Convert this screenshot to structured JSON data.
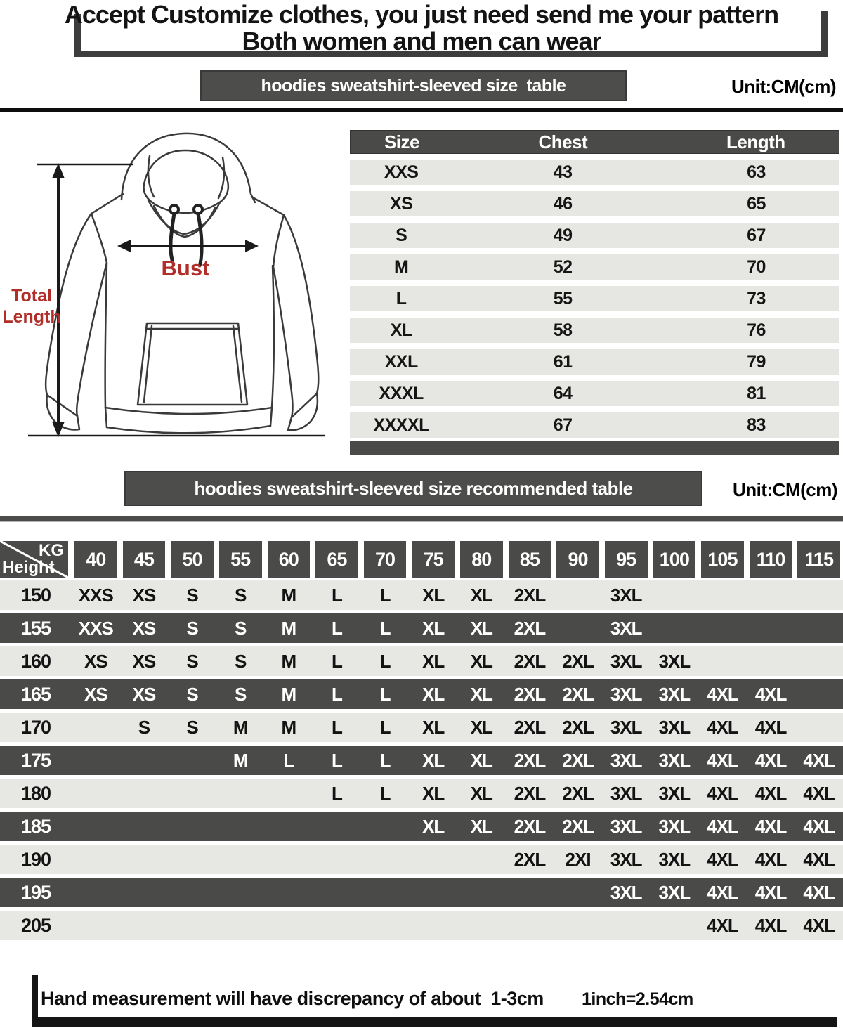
{
  "header": {
    "line1": "Accept Customize clothes, you just need send me your pattern",
    "line2": "Both women and men can wear"
  },
  "banners": {
    "size_table": {
      "label": "hoodies sweatshirt-sleeved size  table",
      "unit": "Unit:CM(cm)"
    },
    "recommended": {
      "label": "hoodies sweatshirt-sleeved size recommended table",
      "unit": "Unit:CM(cm)"
    }
  },
  "diagram": {
    "bust": "Bust",
    "total_line1": "Total",
    "total_line2": "Length"
  },
  "size_table": {
    "columns": [
      "Size",
      "Chest",
      "Length"
    ],
    "rows": [
      {
        "size": "XXS",
        "chest": "43",
        "length": "63"
      },
      {
        "size": "XS",
        "chest": "46",
        "length": "65"
      },
      {
        "size": "S",
        "chest": "49",
        "length": "67"
      },
      {
        "size": "M",
        "chest": "52",
        "length": "70"
      },
      {
        "size": "L",
        "chest": "55",
        "length": "73"
      },
      {
        "size": "XL",
        "chest": "58",
        "length": "76"
      },
      {
        "size": "XXL",
        "chest": "61",
        "length": "79"
      },
      {
        "size": "XXXL",
        "chest": "64",
        "length": "81"
      },
      {
        "size": "XXXXL",
        "chest": "67",
        "length": "83"
      }
    ]
  },
  "matrix": {
    "corner": {
      "top": "KG",
      "bottom": "Height"
    },
    "weights": [
      "40",
      "45",
      "50",
      "55",
      "60",
      "65",
      "70",
      "75",
      "80",
      "85",
      "90",
      "95",
      "100",
      "105",
      "110",
      "115"
    ],
    "rows": [
      {
        "height": "150",
        "cells": [
          "XXS",
          "XS",
          "S",
          "S",
          "M",
          "L",
          "L",
          "XL",
          "XL",
          "2XL",
          "",
          "3XL",
          "",
          "",
          "",
          ""
        ]
      },
      {
        "height": "155",
        "cells": [
          "XXS",
          "XS",
          "S",
          "S",
          "M",
          "L",
          "L",
          "XL",
          "XL",
          "2XL",
          "",
          "3XL",
          "",
          "",
          "",
          ""
        ]
      },
      {
        "height": "160",
        "cells": [
          "XS",
          "XS",
          "S",
          "S",
          "M",
          "L",
          "L",
          "XL",
          "XL",
          "2XL",
          "2XL",
          "3XL",
          "3XL",
          "",
          "",
          ""
        ]
      },
      {
        "height": "165",
        "cells": [
          "XS",
          "XS",
          "S",
          "S",
          "M",
          "L",
          "L",
          "XL",
          "XL",
          "2XL",
          "2XL",
          "3XL",
          "3XL",
          "4XL",
          "4XL",
          ""
        ]
      },
      {
        "height": "170",
        "cells": [
          "",
          "S",
          "S",
          "M",
          "M",
          "L",
          "L",
          "XL",
          "XL",
          "2XL",
          "2XL",
          "3XL",
          "3XL",
          "4XL",
          "4XL",
          ""
        ]
      },
      {
        "height": "175",
        "cells": [
          "",
          "",
          "",
          "M",
          "L",
          "L",
          "L",
          "XL",
          "XL",
          "2XL",
          "2XL",
          "3XL",
          "3XL",
          "4XL",
          "4XL",
          "4XL"
        ]
      },
      {
        "height": "180",
        "cells": [
          "",
          "",
          "",
          "",
          "",
          "L",
          "L",
          "XL",
          "XL",
          "2XL",
          "2XL",
          "3XL",
          "3XL",
          "4XL",
          "4XL",
          "4XL"
        ]
      },
      {
        "height": "185",
        "cells": [
          "",
          "",
          "",
          "",
          "",
          "",
          "",
          "XL",
          "XL",
          "2XL",
          "2XL",
          "3XL",
          "3XL",
          "4XL",
          "4XL",
          "4XL"
        ]
      },
      {
        "height": "190",
        "cells": [
          "",
          "",
          "",
          "",
          "",
          "",
          "",
          "",
          "",
          "2XL",
          "2XI",
          "3XL",
          "3XL",
          "4XL",
          "4XL",
          "4XL"
        ]
      },
      {
        "height": "195",
        "cells": [
          "",
          "",
          "",
          "",
          "",
          "",
          "",
          "",
          "",
          "",
          "",
          "3XL",
          "3XL",
          "4XL",
          "4XL",
          "4XL"
        ]
      },
      {
        "height": "205",
        "cells": [
          "",
          "",
          "",
          "",
          "",
          "",
          "",
          "",
          "",
          "",
          "",
          "",
          "",
          "4XL",
          "4XL",
          "4XL"
        ]
      }
    ]
  },
  "footer": {
    "note": "Hand measurement will have discrepancy of about  1-3cm",
    "conversion": "1inch=2.54cm"
  },
  "colors": {
    "dark": "#4a4a48",
    "banner": "#4d4d4b",
    "light_row": "#e7e7e4",
    "red": "#b12f2b"
  }
}
